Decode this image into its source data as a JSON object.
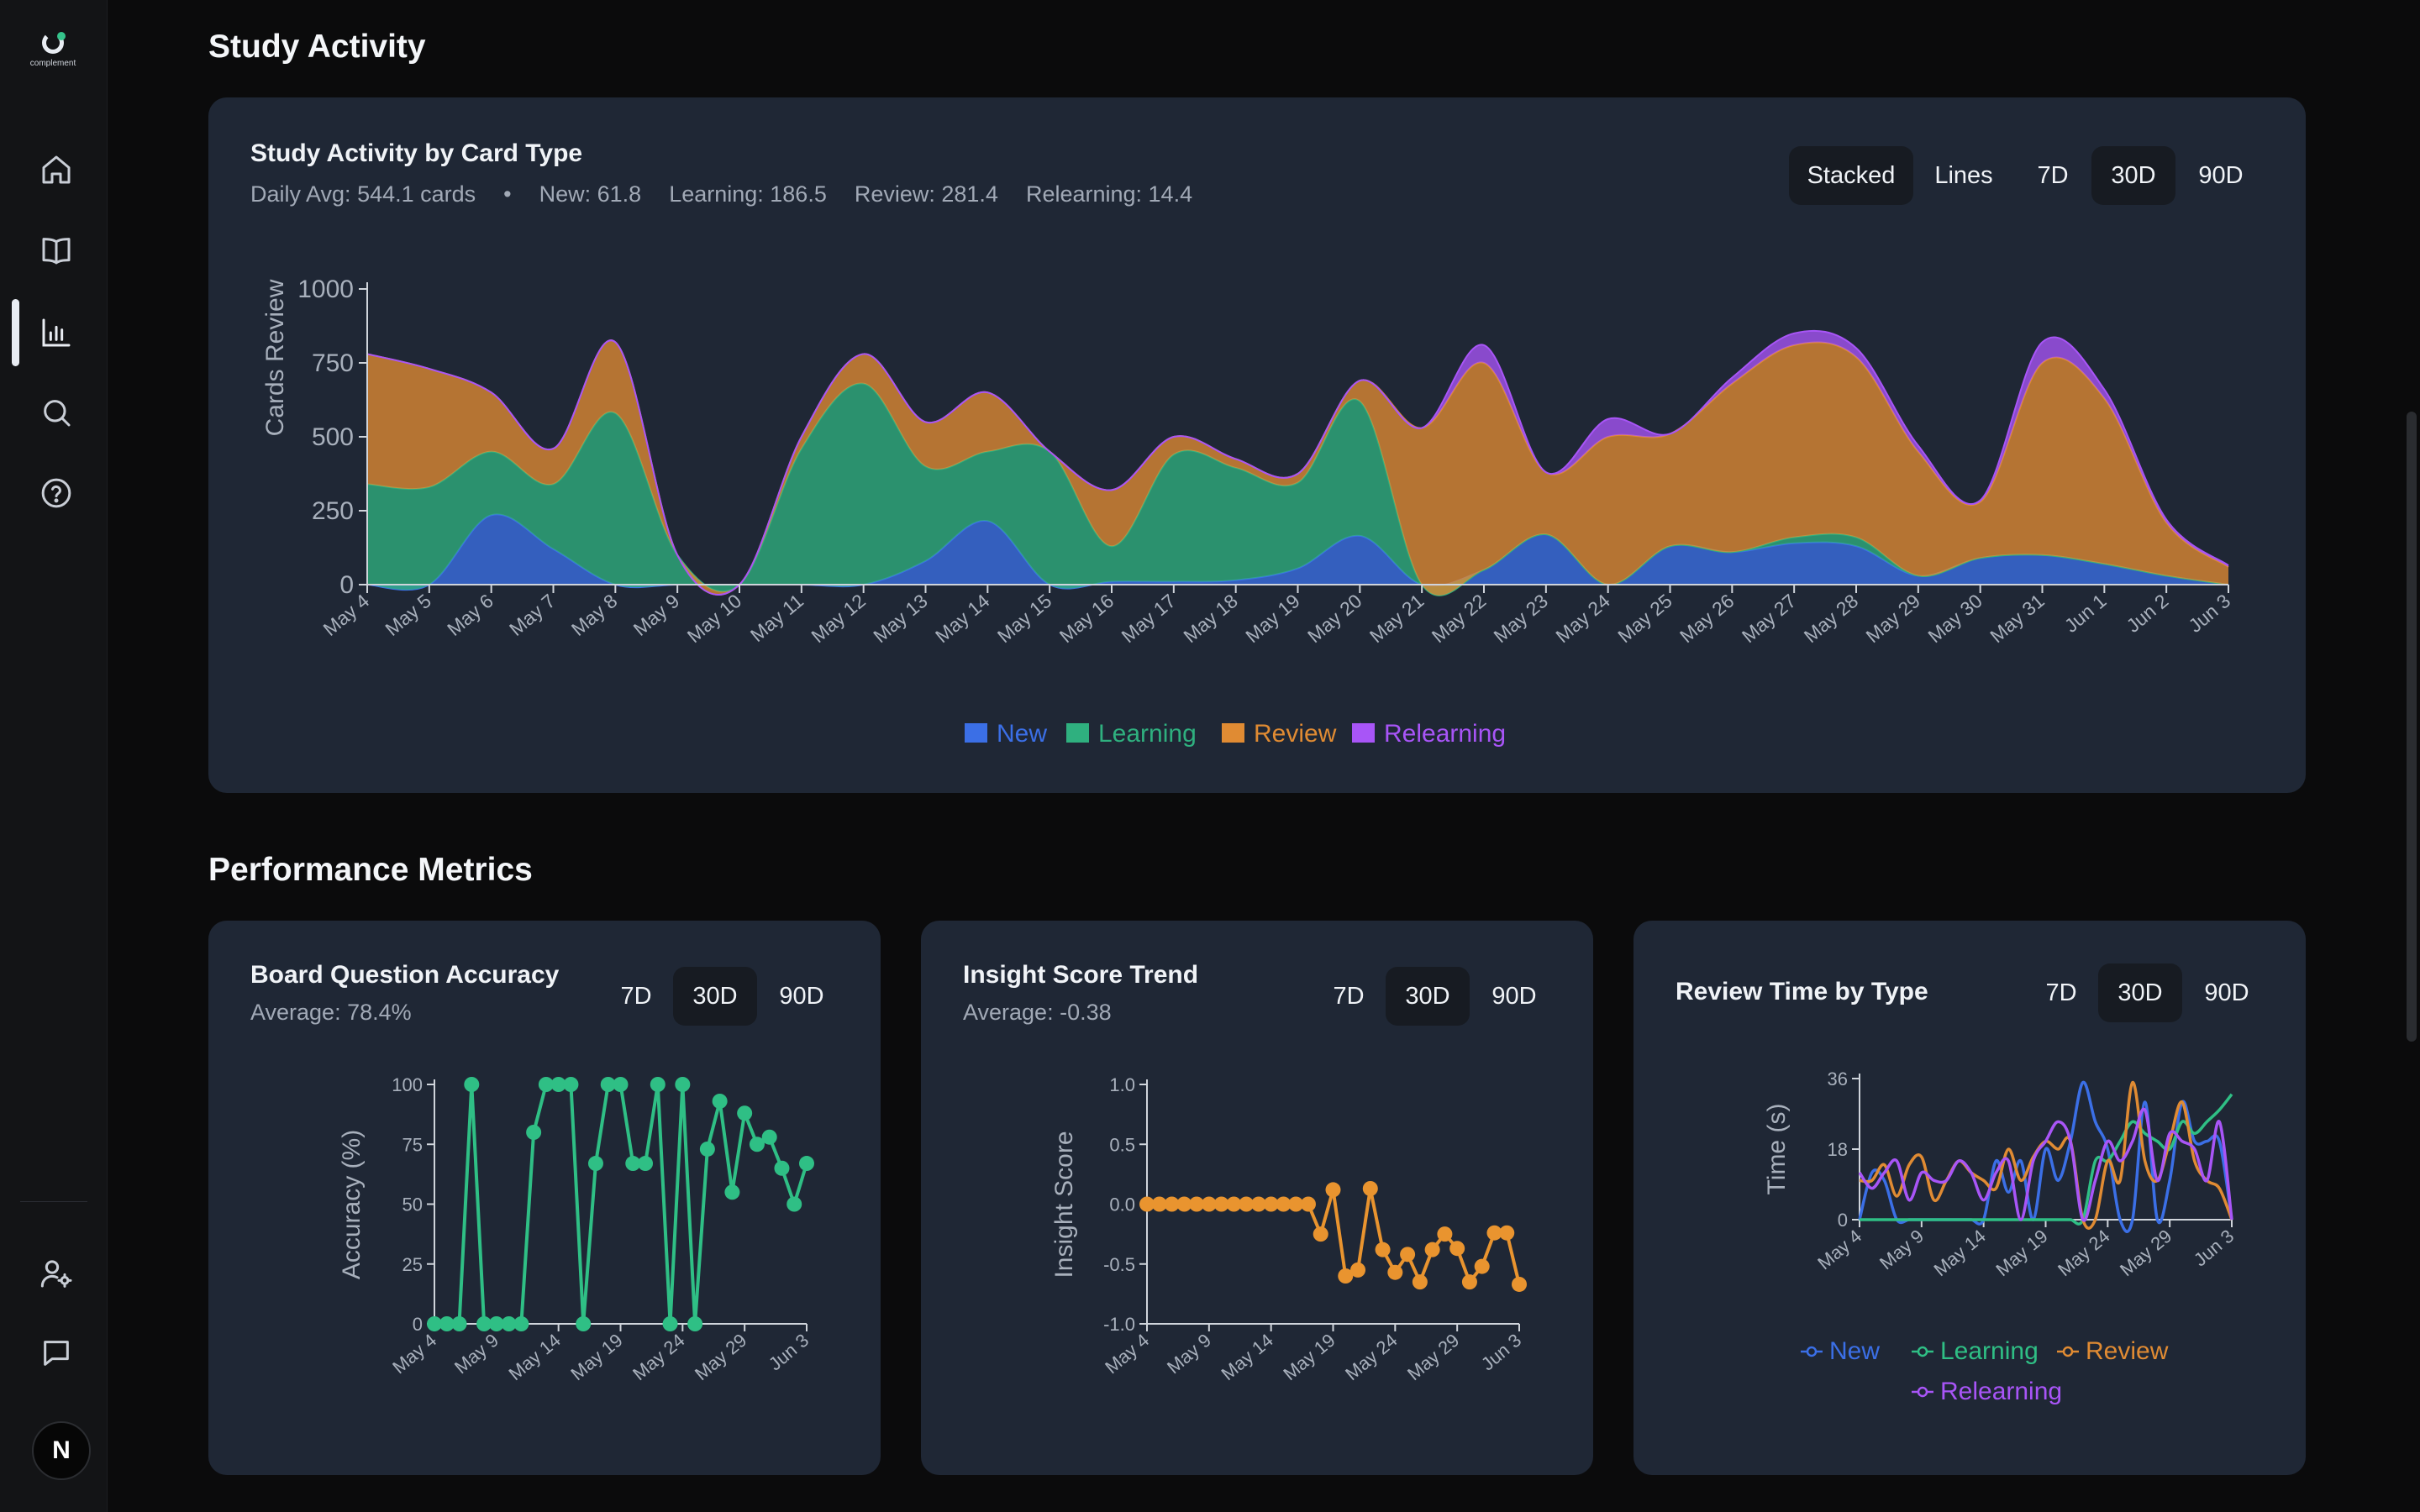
{
  "app": {
    "brand": "complement",
    "user_initial": "N",
    "accent": "#35c38b"
  },
  "sidebar": {
    "nav": [
      {
        "icon": "home-icon",
        "label": "Home"
      },
      {
        "icon": "book-icon",
        "label": "Library"
      },
      {
        "icon": "bar-chart-icon",
        "label": "Statistics",
        "active": true
      },
      {
        "icon": "search-icon",
        "label": "Search"
      },
      {
        "icon": "help-icon",
        "label": "Help"
      }
    ],
    "bottom": [
      {
        "icon": "user-settings-icon",
        "label": "Account settings"
      },
      {
        "icon": "chat-icon",
        "label": "Feedback"
      }
    ]
  },
  "sections": {
    "study_activity": "Study Activity",
    "performance": "Performance Metrics"
  },
  "activity_card": {
    "title": "Study Activity by Card Type",
    "daily_avg": "Daily Avg: 544.1 cards",
    "separator": "•",
    "new_avg": "New: 61.8",
    "learning_avg": "Learning: 186.5",
    "review_avg": "Review: 281.4",
    "relearning_avg": "Relearning: 14.4",
    "mode_buttons": [
      "Stacked",
      "Lines"
    ],
    "mode_active": "Stacked",
    "range_buttons": [
      "7D",
      "30D",
      "90D"
    ],
    "range_active": "30D"
  },
  "accuracy_card": {
    "title": "Board Question Accuracy",
    "subtitle": "Average: 78.4%",
    "range_buttons": [
      "7D",
      "30D",
      "90D"
    ],
    "range_active": "30D"
  },
  "insight_card": {
    "title": "Insight Score Trend",
    "subtitle": "Average: -0.38",
    "range_buttons": [
      "7D",
      "30D",
      "90D"
    ],
    "range_active": "30D"
  },
  "review_time_card": {
    "title": "Review Time by Type",
    "range_buttons": [
      "7D",
      "30D",
      "90D"
    ],
    "range_active": "30D"
  },
  "chart_data": [
    {
      "id": "study-activity",
      "type": "area",
      "stacked": true,
      "ylabel": "Cards Review",
      "ylim": [
        0,
        1000
      ],
      "yticks": [
        0,
        250,
        500,
        750,
        1000
      ],
      "categories": [
        "May 4",
        "May 5",
        "May 6",
        "May 7",
        "May 8",
        "May 9",
        "May 10",
        "May 11",
        "May 12",
        "May 13",
        "May 14",
        "May 15",
        "May 16",
        "May 17",
        "May 18",
        "May 19",
        "May 20",
        "May 21",
        "May 22",
        "May 23",
        "May 24",
        "May 25",
        "May 26",
        "May 27",
        "May 28",
        "May 29",
        "May 30",
        "May 31",
        "Jun 1",
        "Jun 2",
        "Jun 3"
      ],
      "series": [
        {
          "name": "New",
          "color": "#3b6fe6",
          "values": [
            0,
            0,
            235,
            120,
            0,
            0,
            0,
            0,
            0,
            80,
            215,
            0,
            10,
            10,
            15,
            55,
            165,
            0,
            50,
            170,
            0,
            130,
            110,
            140,
            130,
            30,
            90,
            100,
            70,
            30,
            0
          ]
        },
        {
          "name": "Learning",
          "color": "#2fb07f",
          "values": [
            340,
            330,
            215,
            220,
            580,
            100,
            0,
            460,
            680,
            320,
            235,
            450,
            120,
            430,
            380,
            290,
            455,
            0,
            0,
            0,
            0,
            0,
            0,
            20,
            30,
            0,
            0,
            0,
            0,
            0,
            0
          ]
        },
        {
          "name": "Review",
          "color": "#e08b33",
          "values": [
            440,
            400,
            200,
            120,
            240,
            0,
            0,
            40,
            100,
            150,
            200,
            0,
            190,
            60,
            30,
            30,
            70,
            530,
            700,
            210,
            500,
            380,
            570,
            650,
            610,
            420,
            190,
            650,
            560,
            180,
            60
          ]
        },
        {
          "name": "Relearning",
          "color": "#a855f7",
          "values": [
            0,
            0,
            0,
            0,
            0,
            0,
            0,
            0,
            0,
            0,
            0,
            0,
            0,
            0,
            0,
            0,
            0,
            0,
            60,
            0,
            60,
            0,
            20,
            40,
            30,
            20,
            5,
            70,
            30,
            10,
            5
          ]
        }
      ]
    },
    {
      "id": "board-accuracy",
      "type": "line",
      "ylabel": "Accuracy (%)",
      "ylim": [
        0,
        100
      ],
      "yticks": [
        0,
        25,
        50,
        75,
        100
      ],
      "xtick_labels": [
        "May 4",
        "May 9",
        "May 14",
        "May 19",
        "May 24",
        "May 29",
        "Jun 3"
      ],
      "series": [
        {
          "name": "Accuracy",
          "color": "#2fbf85",
          "values": [
            0,
            0,
            0,
            100,
            0,
            0,
            0,
            0,
            80,
            100,
            100,
            100,
            0,
            67,
            100,
            100,
            67,
            67,
            100,
            0,
            100,
            0,
            73,
            93,
            55,
            88,
            75,
            78,
            65,
            50,
            67
          ]
        }
      ]
    },
    {
      "id": "insight-score",
      "type": "line",
      "ylabel": "Insight Score",
      "ylim": [
        -1,
        1
      ],
      "yticks": [
        -1.0,
        -0.5,
        0.0,
        0.5,
        1.0
      ],
      "ytick_labels": [
        "-1.0",
        "-0.5",
        "0.0",
        "0.5",
        "1.0"
      ],
      "xtick_labels": [
        "May 4",
        "May 9",
        "May 14",
        "May 19",
        "May 24",
        "May 29",
        "Jun 3"
      ],
      "series": [
        {
          "name": "Insight Score",
          "color": "#e9942f",
          "values": [
            0,
            0,
            0,
            0,
            0,
            0,
            0,
            0,
            0,
            0,
            0,
            0,
            0,
            0,
            -0.25,
            0.12,
            -0.6,
            -0.55,
            0.13,
            -0.38,
            -0.57,
            -0.42,
            -0.65,
            -0.38,
            -0.25,
            -0.37,
            -0.65,
            -0.52,
            -0.24,
            -0.24,
            -0.67
          ]
        }
      ]
    },
    {
      "id": "review-time",
      "type": "line",
      "ylabel": "Time (s)",
      "ylim": [
        0,
        36
      ],
      "yticks": [
        0,
        18,
        36
      ],
      "xtick_labels": [
        "May 4",
        "May 9",
        "May 14",
        "May 19",
        "May 24",
        "May 29",
        "Jun 3"
      ],
      "legend": [
        "New",
        "Learning",
        "Review",
        "Relearning"
      ],
      "series": [
        {
          "name": "New",
          "color": "#3b6fe6",
          "values": [
            0,
            12,
            10,
            0,
            0,
            0,
            0,
            0,
            0,
            0,
            0,
            15,
            7,
            15,
            0,
            18,
            10,
            20,
            35,
            25,
            18,
            0,
            0,
            30,
            0,
            10,
            30,
            20,
            20,
            20,
            0
          ]
        },
        {
          "name": "Learning",
          "color": "#2fbf85",
          "values": [
            0,
            0,
            0,
            0,
            0,
            0,
            0,
            0,
            0,
            0,
            0,
            0,
            0,
            0,
            0,
            0,
            0,
            0,
            0,
            15,
            15,
            20,
            25,
            22,
            20,
            18,
            25,
            22,
            25,
            28,
            32
          ]
        },
        {
          "name": "Review",
          "color": "#e08b33",
          "values": [
            10,
            10,
            14,
            6,
            14,
            16,
            5,
            10,
            15,
            12,
            10,
            8,
            18,
            10,
            16,
            20,
            18,
            20,
            0,
            0,
            15,
            10,
            35,
            15,
            10,
            20,
            30,
            15,
            10,
            8,
            0
          ]
        },
        {
          "name": "Relearning",
          "color": "#a855f7",
          "values": [
            12,
            8,
            12,
            15,
            5,
            12,
            10,
            10,
            15,
            12,
            5,
            12,
            15,
            0,
            15,
            20,
            25,
            20,
            0,
            10,
            20,
            15,
            20,
            28,
            10,
            22,
            20,
            18,
            10,
            25,
            0
          ]
        }
      ]
    }
  ]
}
